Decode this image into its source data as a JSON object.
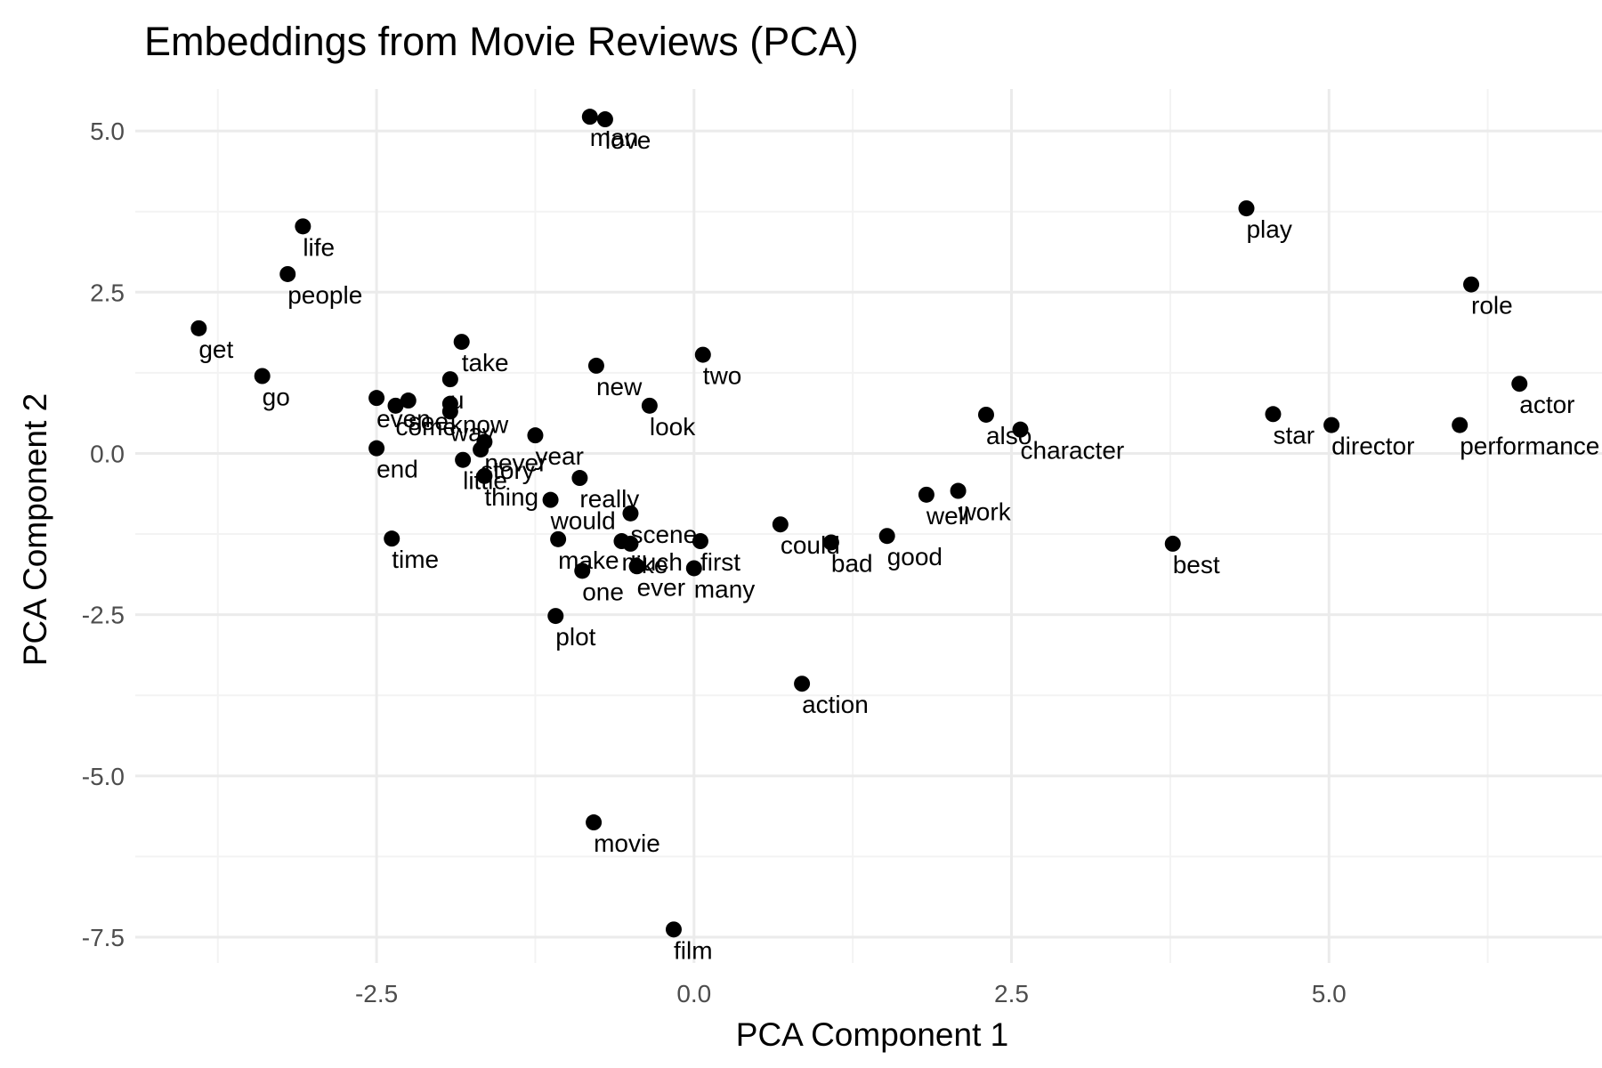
{
  "chart_data": {
    "type": "scatter",
    "title": "Embeddings from Movie Reviews (PCA)",
    "xlabel": "PCA Component 1",
    "ylabel": "PCA Component 2",
    "xlim": [
      -4.4,
      7.15
    ],
    "ylim": [
      -7.9,
      5.65
    ],
    "x_ticks": [
      -2.5,
      0,
      2.5,
      5
    ],
    "x_tick_labels": [
      "-2.5",
      "0.0",
      "2.5",
      "5.0"
    ],
    "y_ticks": [
      -7.5,
      -5,
      -2.5,
      0,
      2.5,
      5
    ],
    "y_tick_labels": [
      "-7.5",
      "-5.0",
      "-2.5",
      "0.0",
      "2.5",
      "5.0"
    ],
    "grid": true,
    "legend": "none",
    "point_color": "#000000",
    "points": [
      {
        "label": "man",
        "x": -0.82,
        "y": 5.22
      },
      {
        "label": "love",
        "x": -0.7,
        "y": 5.18
      },
      {
        "label": "life",
        "x": -3.08,
        "y": 3.52
      },
      {
        "label": "people",
        "x": -3.2,
        "y": 2.78
      },
      {
        "label": "get",
        "x": -3.9,
        "y": 1.94
      },
      {
        "label": "go",
        "x": -3.4,
        "y": 1.2
      },
      {
        "label": "take",
        "x": -1.83,
        "y": 1.73
      },
      {
        "label": "new",
        "x": -0.77,
        "y": 1.36
      },
      {
        "label": "two",
        "x": 0.07,
        "y": 1.53
      },
      {
        "label": "look",
        "x": -0.35,
        "y": 0.74
      },
      {
        "label": "u",
        "x": -1.92,
        "y": 1.15
      },
      {
        "label": "even",
        "x": -2.5,
        "y": 0.86
      },
      {
        "label": "come",
        "x": -2.35,
        "y": 0.74
      },
      {
        "label": "see",
        "x": -2.25,
        "y": 0.82
      },
      {
        "label": "way",
        "x": -1.92,
        "y": 0.65
      },
      {
        "label": "know",
        "x": -1.92,
        "y": 0.77
      },
      {
        "label": "end",
        "x": -2.5,
        "y": 0.08
      },
      {
        "label": "never",
        "x": -1.65,
        "y": 0.18
      },
      {
        "label": "year",
        "x": -1.25,
        "y": 0.28
      },
      {
        "label": "story",
        "x": -1.68,
        "y": 0.06
      },
      {
        "label": "little",
        "x": -1.82,
        "y": -0.1
      },
      {
        "label": "thing",
        "x": -1.65,
        "y": -0.35
      },
      {
        "label": "really",
        "x": -0.9,
        "y": -0.38
      },
      {
        "label": "would",
        "x": -1.13,
        "y": -0.72
      },
      {
        "label": "scene",
        "x": -0.5,
        "y": -0.93
      },
      {
        "label": "time",
        "x": -2.38,
        "y": -1.32
      },
      {
        "label": "make",
        "x": -1.07,
        "y": -1.33
      },
      {
        "label": "much",
        "x": -0.57,
        "y": -1.36
      },
      {
        "label": "like",
        "x": -0.5,
        "y": -1.4
      },
      {
        "label": "first",
        "x": 0.05,
        "y": -1.36
      },
      {
        "label": "one",
        "x": -0.88,
        "y": -1.82
      },
      {
        "label": "ever",
        "x": -0.45,
        "y": -1.75
      },
      {
        "label": "many",
        "x": 0.0,
        "y": -1.78
      },
      {
        "label": "plot",
        "x": -1.09,
        "y": -2.52
      },
      {
        "label": "could",
        "x": 0.68,
        "y": -1.1
      },
      {
        "label": "bad",
        "x": 1.08,
        "y": -1.38
      },
      {
        "label": "good",
        "x": 1.52,
        "y": -1.28
      },
      {
        "label": "well",
        "x": 1.83,
        "y": -0.64
      },
      {
        "label": "work",
        "x": 2.08,
        "y": -0.58
      },
      {
        "label": "also",
        "x": 2.3,
        "y": 0.6
      },
      {
        "label": "character",
        "x": 2.57,
        "y": 0.37
      },
      {
        "label": "action",
        "x": 0.85,
        "y": -3.57
      },
      {
        "label": "best",
        "x": 3.77,
        "y": -1.4
      },
      {
        "label": "play",
        "x": 4.35,
        "y": 3.8
      },
      {
        "label": "star",
        "x": 4.56,
        "y": 0.61
      },
      {
        "label": "director",
        "x": 5.02,
        "y": 0.44
      },
      {
        "label": "role",
        "x": 6.12,
        "y": 2.62
      },
      {
        "label": "actor",
        "x": 6.5,
        "y": 1.08
      },
      {
        "label": "performance",
        "x": 6.03,
        "y": 0.44
      },
      {
        "label": "movie",
        "x": -0.79,
        "y": -5.72
      },
      {
        "label": "film",
        "x": -0.16,
        "y": -7.38
      }
    ]
  }
}
